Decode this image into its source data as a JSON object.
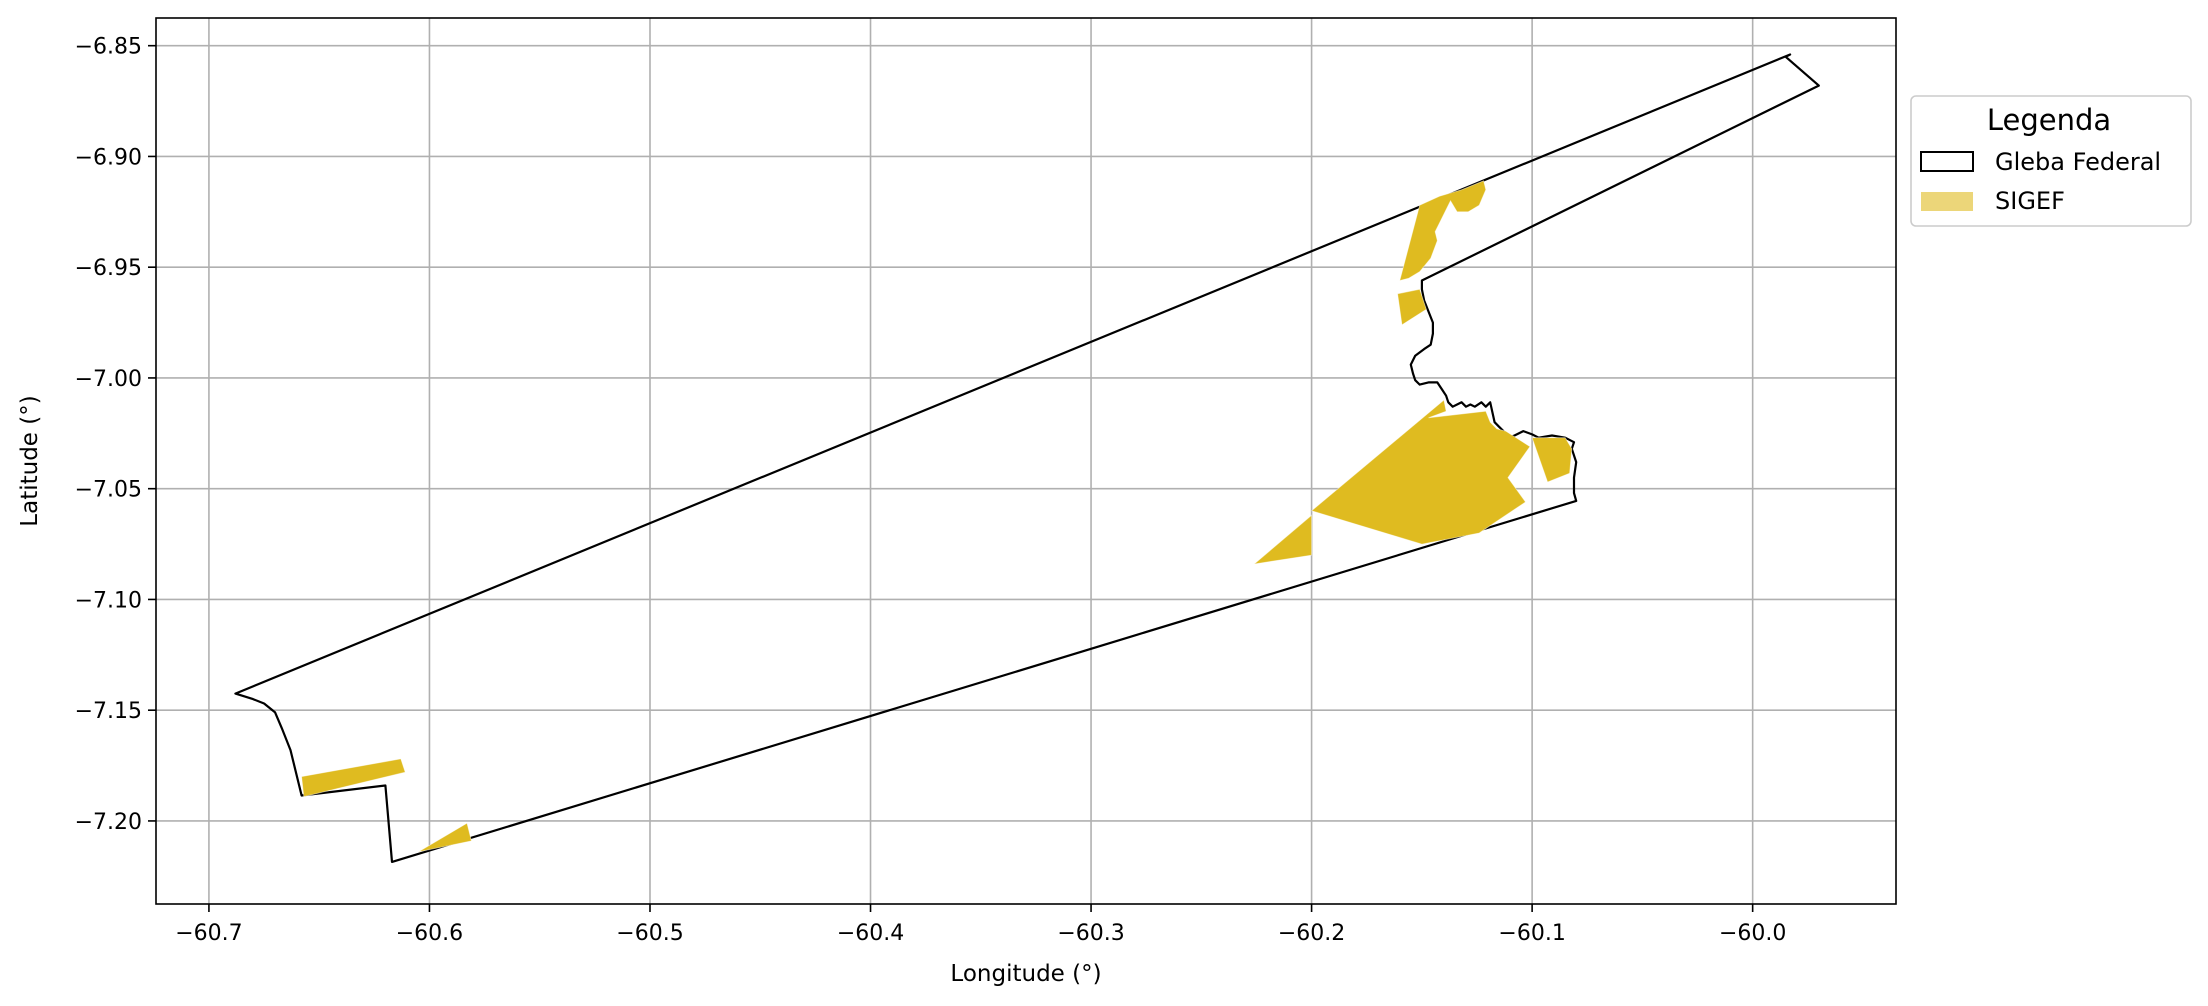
{
  "chart_data": {
    "type": "map",
    "title": "",
    "xlabel": "Longitude (°)",
    "ylabel": "Latitude (°)",
    "xlim": [
      -60.724,
      -59.935
    ],
    "ylim": [
      -7.2375,
      -6.8375
    ],
    "grid": true,
    "x_ticks": [
      -60.7,
      -60.6,
      -60.5,
      -60.4,
      -60.3,
      -60.2,
      -60.1,
      -60.0
    ],
    "x_tick_labels": [
      "−60.7",
      "−60.6",
      "−60.5",
      "−60.4",
      "−60.3",
      "−60.2",
      "−60.1",
      "−60.0"
    ],
    "y_ticks": [
      -6.85,
      -6.9,
      -6.95,
      -7.0,
      -7.05,
      -7.1,
      -7.15,
      -7.2
    ],
    "y_tick_labels": [
      "−6.85",
      "−6.90",
      "−6.95",
      "−7.00",
      "−7.05",
      "−7.10",
      "−7.15",
      "−7.20"
    ],
    "legend": {
      "title": "Legenda",
      "placement": "outside-upper-right",
      "entries": [
        {
          "label": "Gleba Federal",
          "style": "outline",
          "color": "#000000"
        },
        {
          "label": "SIGEF",
          "style": "fill",
          "color": "#DFBB20"
        }
      ]
    },
    "layers": [
      {
        "name": "Gleba Federal",
        "style": "outline",
        "color": "#000000",
        "polygons": [
          [
            [
              -60.688,
              -7.1425
            ],
            [
              -60.68,
              -7.145
            ],
            [
              -60.675,
              -7.147
            ],
            [
              -60.67,
              -7.151
            ],
            [
              -60.667,
              -7.158
            ],
            [
              -60.663,
              -7.168
            ],
            [
              -60.658,
              -7.1885
            ],
            [
              -60.62,
              -7.184
            ],
            [
              -60.617,
              -7.2185
            ],
            [
              -60.08,
              -7.0555
            ],
            [
              -60.081,
              -7.052
            ],
            [
              -60.081,
              -7.045
            ],
            [
              -60.08,
              -7.038
            ],
            [
              -60.082,
              -7.032
            ],
            [
              -60.081,
              -7.029
            ],
            [
              -60.085,
              -7.027
            ],
            [
              -60.091,
              -7.026
            ],
            [
              -60.097,
              -7.027
            ],
            [
              -60.1,
              -7.0255
            ],
            [
              -60.104,
              -7.024
            ],
            [
              -60.108,
              -7.026
            ],
            [
              -60.111,
              -7.027
            ],
            [
              -60.113,
              -7.024
            ],
            [
              -60.115,
              -7.022
            ],
            [
              -60.117,
              -7.02
            ],
            [
              -60.119,
              -7.011
            ],
            [
              -60.121,
              -7.013
            ],
            [
              -60.123,
              -7.011
            ],
            [
              -60.126,
              -7.013
            ],
            [
              -60.128,
              -7.012
            ],
            [
              -60.13,
              -7.013
            ],
            [
              -60.132,
              -7.011
            ],
            [
              -60.134,
              -7.012
            ],
            [
              -60.136,
              -7.013
            ],
            [
              -60.138,
              -7.011
            ],
            [
              -60.139,
              -7.008
            ],
            [
              -60.141,
              -7.005
            ],
            [
              -60.143,
              -7.002
            ],
            [
              -60.147,
              -7.002
            ],
            [
              -60.151,
              -7.003
            ],
            [
              -60.153,
              -7.001
            ],
            [
              -60.154,
              -6.998
            ],
            [
              -60.155,
              -6.994
            ],
            [
              -60.153,
              -6.99
            ],
            [
              -60.149,
              -6.987
            ],
            [
              -60.146,
              -6.985
            ],
            [
              -60.145,
              -6.98
            ],
            [
              -60.145,
              -6.975
            ],
            [
              -60.147,
              -6.97
            ],
            [
              -60.149,
              -6.965
            ],
            [
              -60.15,
              -6.96
            ],
            [
              -60.15,
              -6.956
            ],
            [
              -59.97,
              -6.868
            ],
            [
              -59.985,
              -6.855
            ],
            [
              -59.983,
              -6.854
            ],
            [
              -60.688,
              -7.1425
            ]
          ]
        ]
      },
      {
        "name": "SIGEF",
        "style": "fill",
        "color": "#DFBB20",
        "polygons": [
          [
            [
              -60.658,
              -7.18
            ],
            [
              -60.613,
              -7.172
            ],
            [
              -60.611,
              -7.178
            ],
            [
              -60.657,
              -7.189
            ]
          ],
          [
            [
              -60.605,
              -7.214
            ],
            [
              -60.583,
              -7.201
            ],
            [
              -60.581,
              -7.209
            ]
          ],
          [
            [
              -60.16,
              -6.956
            ],
            [
              -60.151,
              -6.922
            ],
            [
              -60.142,
              -6.918
            ],
            [
              -60.132,
              -6.915
            ],
            [
              -60.122,
              -6.911
            ],
            [
              -60.121,
              -6.915
            ],
            [
              -60.124,
              -6.922
            ],
            [
              -60.129,
              -6.925
            ],
            [
              -60.134,
              -6.925
            ],
            [
              -60.137,
              -6.92
            ],
            [
              -60.142,
              -6.93
            ],
            [
              -60.144,
              -6.934
            ],
            [
              -60.143,
              -6.938
            ],
            [
              -60.146,
              -6.946
            ],
            [
              -60.151,
              -6.952
            ],
            [
              -60.156,
              -6.955
            ]
          ],
          [
            [
              -60.161,
              -6.962
            ],
            [
              -60.151,
              -6.96
            ],
            [
              -60.148,
              -6.969
            ],
            [
              -60.159,
              -6.976
            ]
          ],
          [
            [
              -60.2,
              -7.06
            ],
            [
              -60.14,
              -7.01
            ],
            [
              -60.139,
              -7.015
            ],
            [
              -60.147,
              -7.018
            ],
            [
              -60.121,
              -7.015
            ],
            [
              -60.119,
              -7.02
            ],
            [
              -60.116,
              -7.023
            ],
            [
              -60.112,
              -7.024
            ],
            [
              -60.101,
              -7.031
            ],
            [
              -60.111,
              -7.045
            ],
            [
              -60.103,
              -7.056
            ],
            [
              -60.124,
              -7.07
            ],
            [
              -60.15,
              -7.075
            ]
          ],
          [
            [
              -60.226,
              -7.084
            ],
            [
              -60.2,
              -7.062
            ],
            [
              -60.2,
              -7.08
            ]
          ],
          [
            [
              -60.1,
              -7.027
            ],
            [
              -60.085,
              -7.027
            ],
            [
              -60.082,
              -7.032
            ],
            [
              -60.083,
              -7.043
            ],
            [
              -60.093,
              -7.047
            ]
          ]
        ]
      }
    ]
  }
}
